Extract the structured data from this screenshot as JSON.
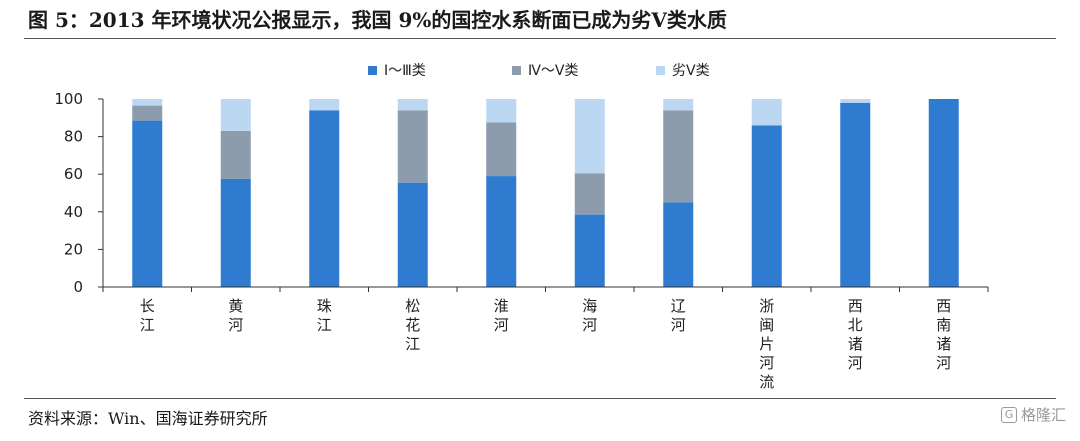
{
  "header": {
    "title": "图 5：2013 年环境状况公报显示，我国 9%的国控水系断面已成为劣Ⅴ类水质"
  },
  "footer": {
    "source": "资料来源：Win、国海证券研究所",
    "watermark": "格隆汇",
    "watermark_icon": "G"
  },
  "chart_data": {
    "type": "bar",
    "stacked": true,
    "categories": [
      "长江",
      "黄河",
      "珠江",
      "松花江",
      "淮河",
      "海河",
      "辽河",
      "浙闽片河流",
      "西北诸河",
      "西南诸河"
    ],
    "series": [
      {
        "name": "Ⅰ～Ⅲ类",
        "color": "#2e7bd0",
        "values": [
          88.5,
          57.5,
          94,
          55.5,
          59,
          38.5,
          45,
          86,
          98,
          100
        ]
      },
      {
        "name": "Ⅳ～Ⅴ类",
        "color": "#8c9cad",
        "values": [
          8,
          25.5,
          0,
          38.5,
          28.5,
          22,
          49,
          0,
          0,
          0
        ]
      },
      {
        "name": "劣Ⅴ类",
        "color": "#bcd7f2",
        "values": [
          3.5,
          17,
          6,
          6,
          12.5,
          39.5,
          6,
          14,
          2,
          0
        ]
      }
    ],
    "ylim": [
      0,
      100
    ],
    "yticks": [
      0,
      20,
      40,
      60,
      80,
      100
    ],
    "legend": "top",
    "grid": false
  }
}
